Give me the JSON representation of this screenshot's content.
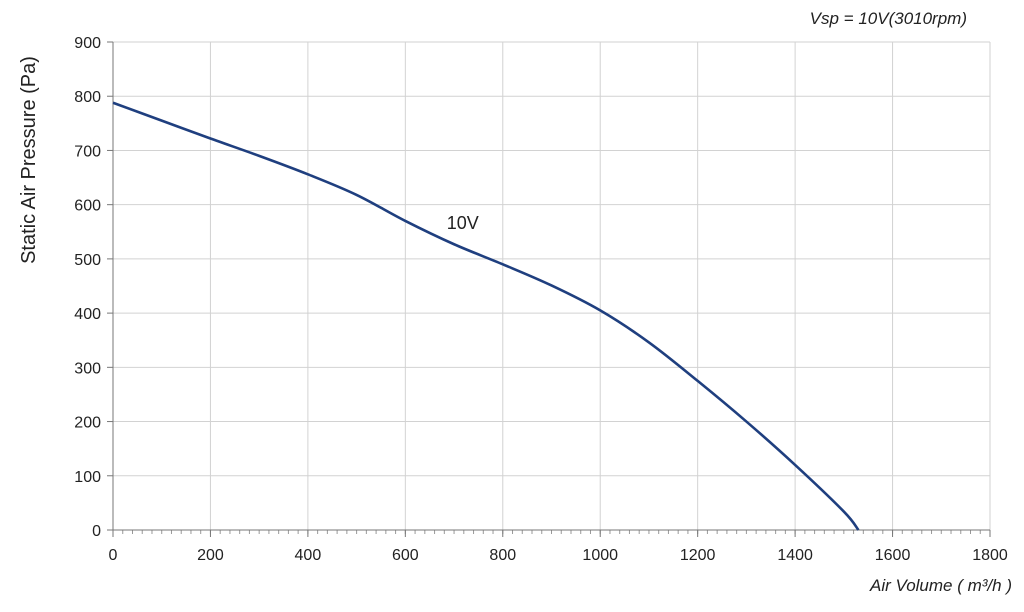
{
  "chart_data": {
    "type": "line",
    "subtitle": "Vsp = 10V(3010rpm)",
    "xlabel": "Air Volume ( m³/h )",
    "ylabel": "Static Air Pressure  (Pa)",
    "xlim": [
      0,
      1800
    ],
    "ylim": [
      0,
      900
    ],
    "x_ticks": [
      0,
      200,
      400,
      600,
      800,
      1000,
      1200,
      1400,
      1600,
      1800
    ],
    "y_ticks": [
      0,
      100,
      200,
      300,
      400,
      500,
      600,
      700,
      800,
      900
    ],
    "grid": true,
    "series": [
      {
        "name": "10V",
        "color": "#1f3f7f",
        "x": [
          0,
          100,
          200,
          300,
          400,
          500,
          600,
          700,
          800,
          900,
          1000,
          1100,
          1200,
          1300,
          1400,
          1500,
          1530
        ],
        "y": [
          788,
          755,
          722,
          690,
          656,
          618,
          570,
          527,
          490,
          451,
          405,
          346,
          275,
          200,
          120,
          34,
          0
        ]
      }
    ],
    "annotations": [
      {
        "text": "10V",
        "x": 685,
        "y": 555
      }
    ]
  }
}
